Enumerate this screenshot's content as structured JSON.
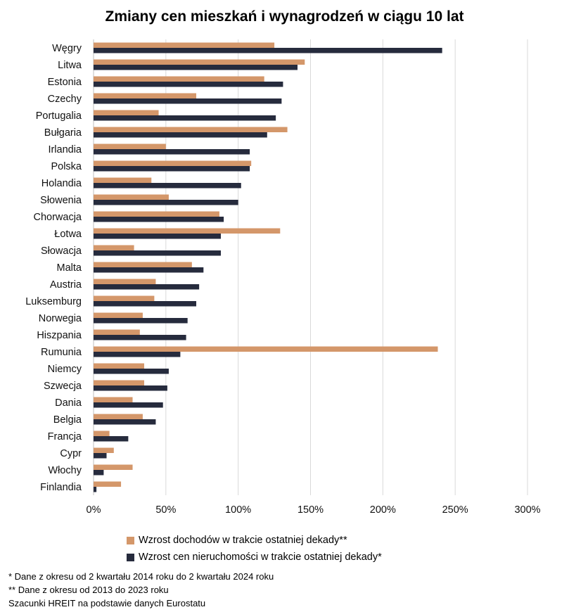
{
  "chart_data": {
    "type": "bar",
    "orientation": "horizontal",
    "title": "Zmiany cen mieszkań i wynagrodzeń w ciągu 10 lat",
    "categories": [
      "Węgry",
      "Litwa",
      "Estonia",
      "Czechy",
      "Portugalia",
      "Bułgaria",
      "Irlandia",
      "Polska",
      "Holandia",
      "Słowenia",
      "Chorwacja",
      "Łotwa",
      "Słowacja",
      "Malta",
      "Austria",
      "Luksemburg",
      "Norwegia",
      "Hiszpania",
      "Rumunia",
      "Niemcy",
      "Szwecja",
      "Dania",
      "Belgia",
      "Francja",
      "Cypr",
      "Włochy",
      "Finlandia"
    ],
    "series": [
      {
        "name": "Wzrost dochodów w trakcie ostatniej dekady**",
        "color": "#d4976a",
        "values": [
          125,
          146,
          118,
          71,
          45,
          134,
          50,
          109,
          40,
          52,
          87,
          129,
          28,
          68,
          43,
          42,
          34,
          32,
          238,
          35,
          35,
          27,
          34,
          11,
          14,
          27,
          19
        ]
      },
      {
        "name": "Wzrost cen nieruchomości w trakcie ostatniej dekady*",
        "color": "#262b3d",
        "values": [
          241,
          141,
          131,
          130,
          126,
          120,
          108,
          108,
          102,
          100,
          90,
          88,
          88,
          76,
          73,
          71,
          65,
          64,
          60,
          52,
          51,
          48,
          43,
          24,
          9,
          7,
          2
        ]
      }
    ],
    "xlim": [
      0,
      300
    ],
    "x_ticks": [
      0,
      50,
      100,
      150,
      200,
      250,
      300
    ],
    "tick_suffix": "%",
    "grid": true,
    "legend_position": "bottom"
  },
  "legend": [
    {
      "label": "Wzrost dochodów w trakcie ostatniej dekady**",
      "color": "#d4976a"
    },
    {
      "label": "Wzrost cen nieruchomości w trakcie ostatniej dekady*",
      "color": "#262b3d"
    }
  ],
  "notes": [
    "* Dane z okresu od 2 kwartału 2014 roku do 2 kwartału 2024 roku",
    "** Dane z okresu od 2013 do 2023 roku",
    "Szacunki HREIT na podstawie danych Eurostatu"
  ]
}
